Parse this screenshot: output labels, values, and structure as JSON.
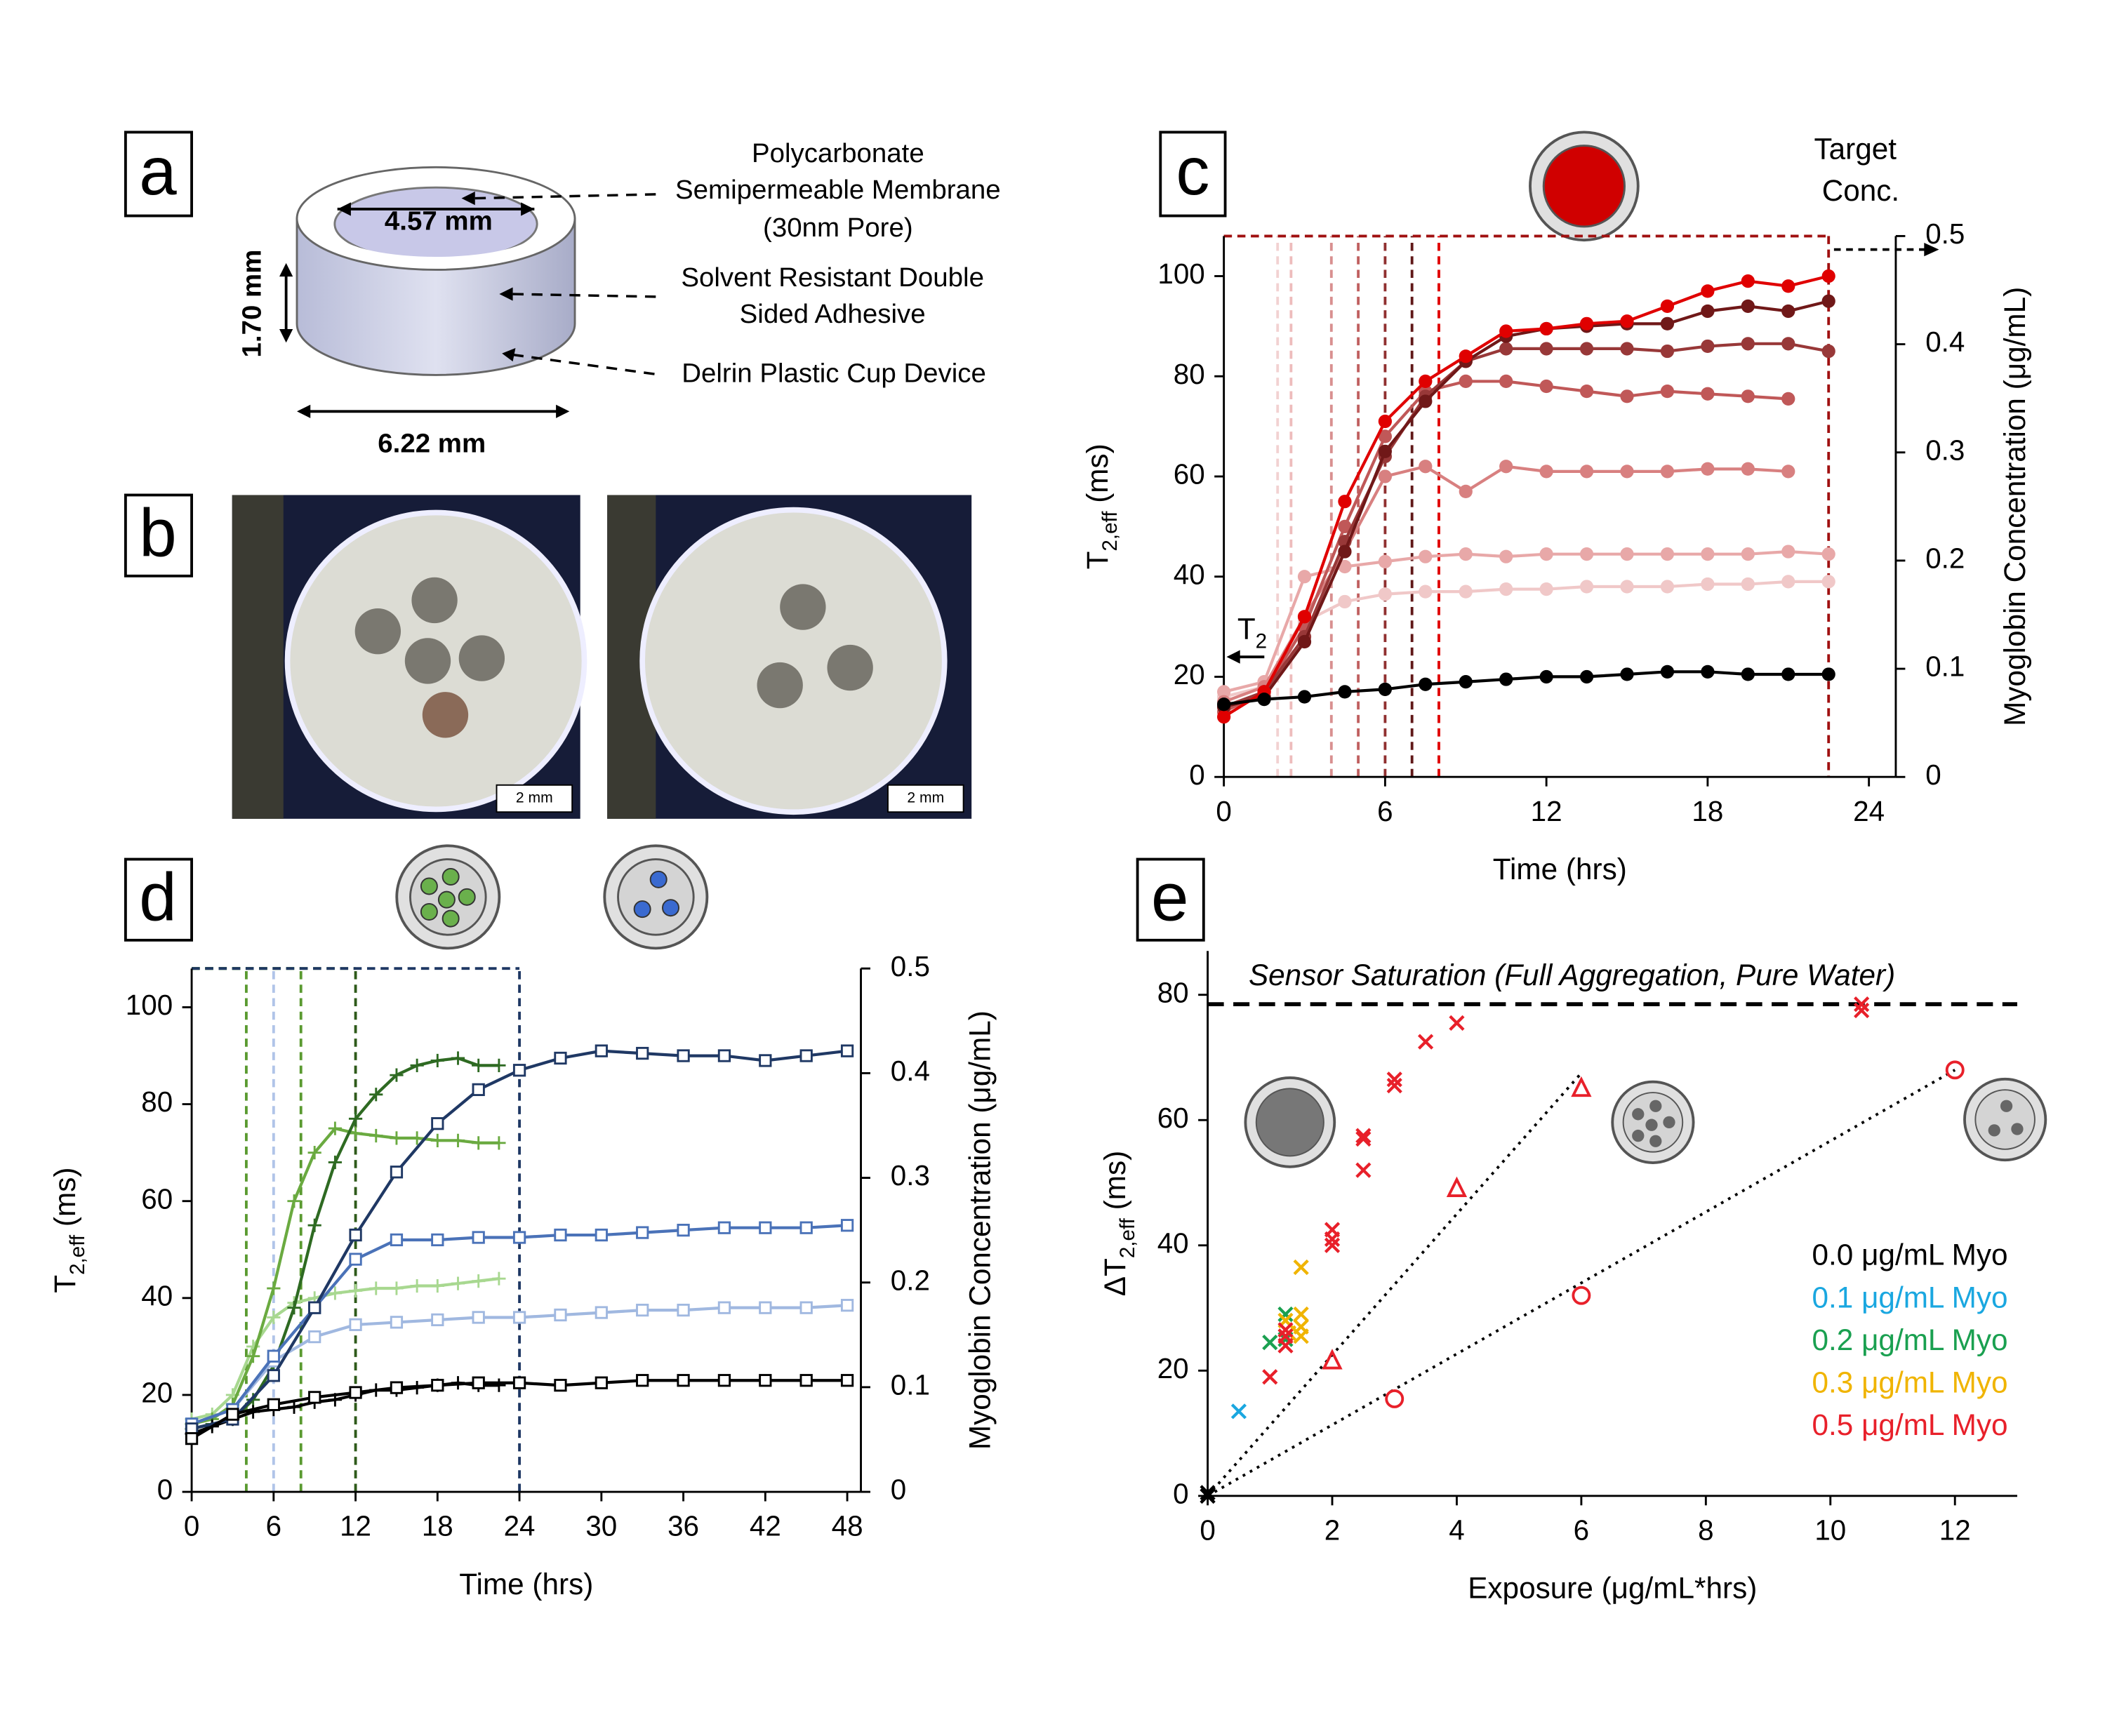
{
  "panels": {
    "labels": [
      "a",
      "b",
      "c",
      "d",
      "e"
    ],
    "a": {
      "inner_diameter": "4.57 mm",
      "height": "1.70 mm",
      "outer_diameter": "6.22 mm",
      "membrane": [
        "Polycarbonate",
        "Semipermeable Membrane",
        "(30nm Pore)"
      ],
      "adhesive": [
        "Solvent Resistant Double",
        "Sided Adhesive"
      ],
      "cup": "Delrin Plastic Cup Device"
    },
    "b": {
      "scale_bars": [
        "2 mm",
        "2 mm"
      ]
    }
  },
  "chart_data": [
    {
      "type": "line",
      "xlabel": "Time (hrs)",
      "ylabel": [
        "T",
        "2,eff",
        " (ms)"
      ],
      "y2label": "Myoglobin Concentration (μg/mL)",
      "xlim": [
        0,
        25
      ],
      "xticks": [
        0,
        6,
        12,
        18,
        24
      ],
      "ylim": [
        0,
        108
      ],
      "yticks": [
        0,
        20,
        40,
        60,
        80,
        100
      ],
      "y2lim": [
        0,
        0.5
      ],
      "y2ticks": [
        0,
        0.1,
        0.2,
        0.3,
        0.4,
        0.5
      ],
      "annotations": {
        "t2": [
          "T",
          "2"
        ],
        "target": [
          "Target",
          "Conc."
        ]
      },
      "target_lines": {
        "x": [
          2,
          2.5,
          4,
          5,
          6,
          7,
          8
        ],
        "colors": [
          "#f2d2d2",
          "#eebcbc",
          "#d89090",
          "#c06060",
          "#903030",
          "#601818",
          "#e00000"
        ],
        "level": 0.5,
        "box_end": 22.5,
        "box_color": "#a01010"
      },
      "series": [
        {
          "color": "#f0c8c8",
          "marker": "circle",
          "x": [
            0,
            1.5,
            3,
            4.5,
            6,
            7.5,
            9,
            10.5,
            12,
            13.5,
            15,
            16.5,
            18,
            19.5,
            21,
            22.5
          ],
          "values": [
            16,
            18,
            31,
            35,
            36.5,
            37,
            37,
            37.5,
            37.5,
            38,
            38,
            38,
            38.5,
            38.5,
            39,
            39
          ]
        },
        {
          "color": "#e8a8a8",
          "marker": "circle",
          "x": [
            0,
            1.5,
            3,
            4.5,
            6,
            7.5,
            9,
            10.5,
            12,
            13.5,
            15,
            16.5,
            18,
            19.5,
            21,
            22.5
          ],
          "values": [
            17,
            19,
            40,
            42,
            43,
            44,
            44.5,
            44,
            44.5,
            44.5,
            44.5,
            44.5,
            44.5,
            44.5,
            45,
            44.5
          ]
        },
        {
          "color": "#d88080",
          "marker": "circle",
          "x": [
            0,
            1.5,
            3,
            4.5,
            6,
            7.5,
            9,
            10.5,
            12,
            13.5,
            15,
            16.5,
            18,
            19.5,
            21
          ],
          "values": [
            15,
            18,
            32,
            45,
            60,
            62,
            57,
            62,
            61,
            61,
            61,
            61,
            61.5,
            61.5,
            61
          ]
        },
        {
          "color": "#c05858",
          "marker": "circle",
          "x": [
            0,
            1.5,
            3,
            4.5,
            6,
            7.5,
            9,
            10.5,
            12,
            13.5,
            15,
            16.5,
            18,
            19.5,
            21
          ],
          "values": [
            13,
            17,
            30,
            50,
            68,
            77,
            79,
            79,
            78,
            77,
            76,
            77,
            76.5,
            76,
            75.5
          ]
        },
        {
          "color": "#983838",
          "marker": "circle",
          "x": [
            0,
            1.5,
            3,
            4.5,
            6,
            7.5,
            9,
            10.5,
            12,
            13.5,
            15,
            16.5,
            18,
            19.5,
            21,
            22.5
          ],
          "values": [
            14,
            17,
            28,
            47,
            64,
            76,
            83,
            85.5,
            85.5,
            85.5,
            85.5,
            85,
            86,
            86.5,
            86.5,
            85
          ]
        },
        {
          "color": "#701818",
          "marker": "circle",
          "x": [
            0,
            1.5,
            3,
            4.5,
            6,
            7.5,
            9,
            10.5,
            12,
            13.5,
            15,
            16.5,
            18,
            19.5,
            21,
            22.5
          ],
          "values": [
            14,
            16,
            27,
            45,
            65,
            75,
            83,
            88,
            89.5,
            90,
            90.5,
            90.5,
            93,
            94,
            93,
            95
          ]
        },
        {
          "color": "#e00000",
          "marker": "circle",
          "x": [
            0,
            1.5,
            3,
            4.5,
            6,
            7.5,
            9,
            10.5,
            12,
            13.5,
            15,
            16.5,
            18,
            19.5,
            21,
            22.5
          ],
          "values": [
            12,
            17,
            32,
            55,
            71,
            79,
            84,
            89,
            89.5,
            90.5,
            91,
            94,
            97,
            99,
            98,
            100
          ]
        },
        {
          "color": "#000000",
          "marker": "circle",
          "x": [
            0,
            1.5,
            3,
            4.5,
            6,
            7.5,
            9,
            10.5,
            12,
            13.5,
            15,
            16.5,
            18,
            19.5,
            21,
            22.5
          ],
          "values": [
            14.5,
            15.5,
            16,
            17,
            17.5,
            18.5,
            19,
            19.5,
            20,
            20,
            20.5,
            21,
            21,
            20.5,
            20.5,
            20.5
          ]
        }
      ]
    },
    {
      "type": "line",
      "xlabel": "Time (hrs)",
      "ylabel": [
        "T",
        "2,eff",
        " (ms)"
      ],
      "y2label": "Myoglobin Concentration (μg/mL)",
      "xlim": [
        0,
        49
      ],
      "xticks": [
        0,
        6,
        12,
        18,
        24,
        30,
        36,
        42,
        48
      ],
      "ylim": [
        0,
        108
      ],
      "yticks": [
        0,
        20,
        40,
        60,
        80,
        100
      ],
      "y2lim": [
        0,
        0.5
      ],
      "y2ticks": [
        0,
        0.1,
        0.2,
        0.3,
        0.4,
        0.5
      ],
      "target_lines": {
        "x": [
          4,
          6,
          8,
          12,
          24
        ],
        "colors": [
          "#5a9a30",
          "#b0c4e8",
          "#5a9a30",
          "#2e5a1a",
          "#1f3864"
        ],
        "level": 0.5
      },
      "series": [
        {
          "color": "#a8d890",
          "marker": "plus",
          "x": [
            0,
            1.5,
            3,
            4.5,
            6,
            7.5,
            9,
            10.5,
            12,
            13.5,
            15,
            16.5,
            18,
            19.5,
            21,
            22.5
          ],
          "values": [
            15,
            16,
            20,
            30,
            36,
            39,
            40,
            41,
            41.5,
            42,
            42,
            42.5,
            42.5,
            43,
            43.5,
            44
          ]
        },
        {
          "color": "#6aaa40",
          "marker": "plus",
          "x": [
            0,
            1.5,
            3,
            4.5,
            6,
            7.5,
            9,
            10.5,
            12,
            13.5,
            15,
            16.5,
            18,
            19.5,
            21,
            22.5
          ],
          "values": [
            14,
            15,
            18,
            28,
            42,
            60,
            70,
            75,
            74,
            73.5,
            73,
            73,
            72.5,
            72.5,
            72,
            72
          ]
        },
        {
          "color": "#2e6a22",
          "marker": "plus",
          "x": [
            0,
            1.5,
            3,
            4.5,
            6,
            7.5,
            9,
            10.5,
            12,
            13.5,
            15,
            16.5,
            18,
            19.5,
            21,
            22.5
          ],
          "values": [
            13,
            14,
            15,
            19,
            26,
            38,
            55,
            68,
            77,
            82,
            86,
            88,
            89,
            89.5,
            88,
            88
          ]
        },
        {
          "color": "#000000",
          "marker": "plus",
          "x": [
            0,
            1.5,
            3,
            4.5,
            6,
            7.5,
            9,
            10.5,
            12,
            13.5,
            15,
            16.5,
            18,
            19.5,
            21,
            22.5
          ],
          "values": [
            12,
            13.5,
            15,
            16.5,
            17,
            17.5,
            18.5,
            19,
            20,
            21,
            21,
            21.5,
            22,
            22.5,
            22,
            22
          ]
        },
        {
          "color": "#a0b8e0",
          "marker": "square",
          "x": [
            0,
            3,
            6,
            9,
            12,
            15,
            18,
            21,
            24,
            27,
            30,
            33,
            36,
            39,
            42,
            45,
            48
          ],
          "values": [
            14,
            17,
            27,
            32,
            34.5,
            35,
            35.5,
            36,
            36,
            36.5,
            37,
            37.5,
            37.5,
            38,
            38,
            38,
            38.5
          ]
        },
        {
          "color": "#4a72b8",
          "marker": "square",
          "x": [
            0,
            3,
            6,
            9,
            12,
            15,
            18,
            21,
            24,
            27,
            30,
            33,
            36,
            39,
            42,
            45,
            48
          ],
          "values": [
            14,
            17,
            28,
            38,
            48,
            52,
            52,
            52.5,
            52.5,
            53,
            53,
            53.5,
            54,
            54.5,
            54.5,
            54.5,
            55
          ]
        },
        {
          "color": "#1f3864",
          "marker": "square",
          "x": [
            0,
            3,
            6,
            9,
            12,
            15,
            18,
            21,
            24,
            27,
            30,
            33,
            36,
            39,
            42,
            45,
            48
          ],
          "values": [
            13,
            15,
            24,
            38,
            53,
            66,
            76,
            83,
            87,
            89.5,
            91,
            90.5,
            90,
            90,
            89,
            90,
            91
          ]
        },
        {
          "color": "#000000",
          "marker": "square",
          "x": [
            0,
            3,
            6,
            9,
            12,
            15,
            18,
            21,
            24,
            27,
            30,
            33,
            36,
            39,
            42,
            45,
            48
          ],
          "values": [
            11,
            16,
            18,
            19.5,
            20.5,
            21.5,
            22,
            22.5,
            22.5,
            22,
            22.5,
            23,
            23,
            23,
            23,
            23,
            23
          ]
        }
      ]
    },
    {
      "type": "scatter",
      "xlabel": "Exposure (μg/mL*hrs)",
      "ylabel": [
        "ΔT",
        "2,eff",
        " (ms)"
      ],
      "xlim": [
        0,
        13
      ],
      "xticks": [
        0,
        2,
        4,
        6,
        8,
        10,
        12
      ],
      "ylim": [
        0,
        87
      ],
      "yticks": [
        0,
        20,
        40,
        60,
        80
      ],
      "saturation": {
        "value": 78.5,
        "label": "Sensor Saturation (Full Aggregation, Pure Water)"
      },
      "fit_lines": [
        {
          "x": [
            0,
            6
          ],
          "values": [
            0,
            67.5
          ]
        },
        {
          "x": [
            0,
            12
          ],
          "values": [
            0,
            68
          ]
        }
      ],
      "series": [
        {
          "name": "0.0 μg/mL Myo",
          "color": "#000000",
          "marker": "x",
          "x": [
            0,
            0,
            0
          ],
          "values": [
            0,
            0.5,
            0
          ]
        },
        {
          "name": "0.1 μg/mL Myo",
          "color": "#1aa7e0",
          "marker": "x",
          "x": [
            0.5
          ],
          "values": [
            13.5
          ]
        },
        {
          "name": "0.2 μg/mL Myo",
          "color": "#1aa050",
          "marker": "x",
          "x": [
            1,
            1.25,
            1.25
          ],
          "values": [
            24.5,
            29,
            25
          ]
        },
        {
          "name": "0.3 μg/mL Myo",
          "color": "#f0b400",
          "marker": "x",
          "x": [
            1.5,
            1.5,
            1.5,
            1.5,
            1.25,
            1.3
          ],
          "values": [
            36.5,
            29,
            27,
            25.5,
            28,
            26
          ]
        },
        {
          "name": "0.5 μg/mL Myo",
          "color": "#e8202a",
          "marker": "x",
          "x": [
            1,
            1.25,
            1.25,
            1.25,
            2,
            2,
            2,
            2.5,
            2.5,
            2.5,
            3,
            3,
            3.5,
            4,
            10.5,
            10.5
          ],
          "values": [
            19,
            24,
            25.5,
            26.5,
            40,
            41,
            42.5,
            52,
            57,
            57.5,
            65.5,
            66.5,
            72.5,
            75.5,
            77.5,
            78.5
          ]
        },
        {
          "color": "#e8202a",
          "marker": "triangle",
          "x": [
            2,
            4,
            6
          ],
          "values": [
            21.5,
            49,
            65
          ]
        },
        {
          "color": "#e8202a",
          "marker": "open-circle",
          "x": [
            3,
            6,
            12
          ],
          "values": [
            15.5,
            32,
            68
          ]
        }
      ]
    }
  ]
}
